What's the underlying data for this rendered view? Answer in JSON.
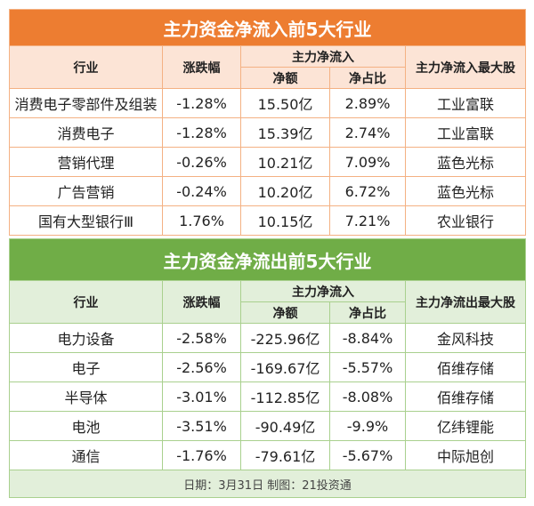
{
  "inflow": {
    "title": "主力资金净流入前5大行业",
    "headers": {
      "industry": "行业",
      "change": "涨跌幅",
      "group": "主力净流入",
      "amount": "净额",
      "ratio": "净占比",
      "top": "主力净流入最大股"
    },
    "rows": [
      {
        "industry": "消费电子零部件及组装",
        "change": "-1.28%",
        "amount": "15.50亿",
        "ratio": "2.89%",
        "top": "工业富联"
      },
      {
        "industry": "消费电子",
        "change": "-1.28%",
        "amount": "15.39亿",
        "ratio": "2.74%",
        "top": "工业富联"
      },
      {
        "industry": "营销代理",
        "change": "-0.26%",
        "amount": "10.21亿",
        "ratio": "7.09%",
        "top": "蓝色光标"
      },
      {
        "industry": "广告营销",
        "change": "-0.24%",
        "amount": "10.20亿",
        "ratio": "6.72%",
        "top": "蓝色光标"
      },
      {
        "industry": "国有大型银行Ⅲ",
        "change": "1.76%",
        "amount": "10.15亿",
        "ratio": "7.21%",
        "top": "农业银行"
      }
    ]
  },
  "outflow": {
    "title": "主力资金净流出前5大行业",
    "headers": {
      "industry": "行业",
      "change": "涨跌幅",
      "group": "主力净流入",
      "amount": "净额",
      "ratio": "净占比",
      "top": "主力净流出最大股"
    },
    "rows": [
      {
        "industry": "电力设备",
        "change": "-2.58%",
        "amount": "-225.96亿",
        "ratio": "-8.84%",
        "top": "金风科技"
      },
      {
        "industry": "电子",
        "change": "-2.56%",
        "amount": "-169.67亿",
        "ratio": "-5.57%",
        "top": "佰维存储"
      },
      {
        "industry": "半导体",
        "change": "-3.01%",
        "amount": "-112.85亿",
        "ratio": "-8.08%",
        "top": "佰维存储"
      },
      {
        "industry": "电池",
        "change": "-3.51%",
        "amount": "-90.49亿",
        "ratio": "-9.9%",
        "top": "亿纬锂能"
      },
      {
        "industry": "通信",
        "change": "-1.76%",
        "amount": "-79.61亿",
        "ratio": "-5.67%",
        "top": "中际旭创"
      }
    ]
  },
  "footer": "日期：3月31日 制图：21投资通"
}
